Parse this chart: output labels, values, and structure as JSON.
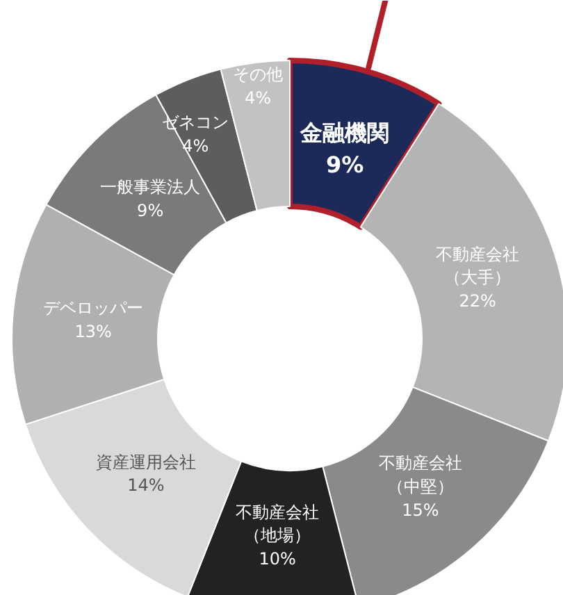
{
  "chart_data": {
    "type": "donut",
    "categories": [
      "金融機関",
      "不動産会社（大手）",
      "不動産会社（中堅）",
      "不動産会社（地場）",
      "資産運用会社",
      "デベロッパー",
      "一般事業法人",
      "ゼネコン",
      "その他"
    ],
    "values": [
      9,
      22,
      15,
      10,
      14,
      13,
      9,
      4,
      4
    ],
    "value_labels": [
      "9%",
      "22%",
      "15%",
      "10%",
      "14%",
      "13%",
      "9%",
      "4%",
      "4%"
    ],
    "colors": [
      "#1c2a5a",
      "#b4b4b4",
      "#8a8a8a",
      "#222222",
      "#d9d9d9",
      "#b0b0b0",
      "#7a7a7a",
      "#5c5e5e",
      "#c2c2c2"
    ]
  }
}
